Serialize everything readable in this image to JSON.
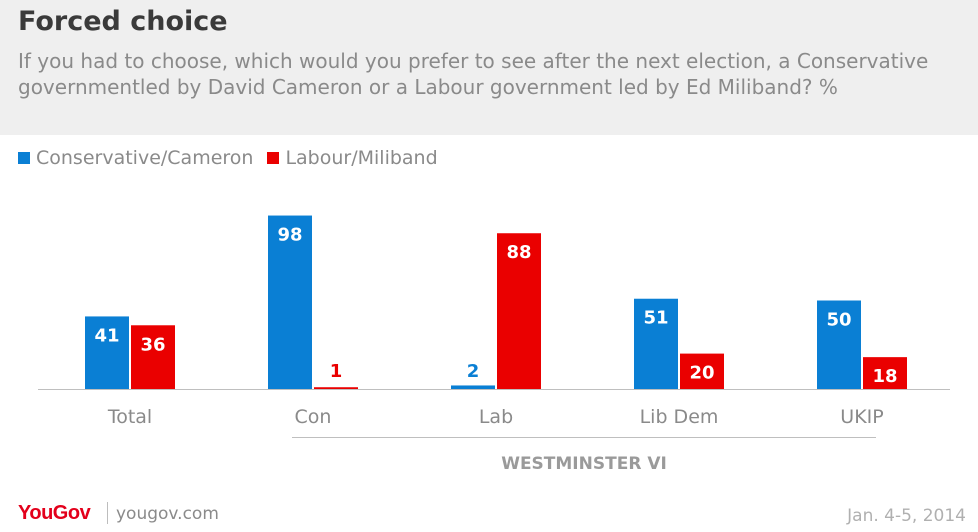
{
  "header": {
    "title": "Forced choice",
    "subtitle": "If you had to choose, which would you prefer to see after the next election, a Conservative governmentled by David Cameron or a Labour government led by Ed Miliband? %"
  },
  "legend": {
    "items": [
      {
        "label": "Conservative/Cameron",
        "color": "#0a7fd4"
      },
      {
        "label": "Labour/Miliband",
        "color": "#ea0000"
      }
    ]
  },
  "chart_data": {
    "type": "bar",
    "categories": [
      "Total",
      "Con",
      "Lab",
      "Lib Dem",
      "UKIP"
    ],
    "series": [
      {
        "name": "Conservative/Cameron",
        "values": [
          41,
          98,
          2,
          51,
          50
        ],
        "color": "#0a7fd4"
      },
      {
        "name": "Labour/Miliband",
        "values": [
          36,
          1,
          88,
          20,
          18
        ],
        "color": "#ea0000"
      }
    ],
    "group_label": "WESTMINSTER VI",
    "ylim": [
      0,
      100
    ],
    "grid": false,
    "legend_position": "top-left"
  },
  "footer": {
    "brand": "YouGov",
    "site": "yougov.com",
    "date": "Jan. 4-5, 2014"
  }
}
